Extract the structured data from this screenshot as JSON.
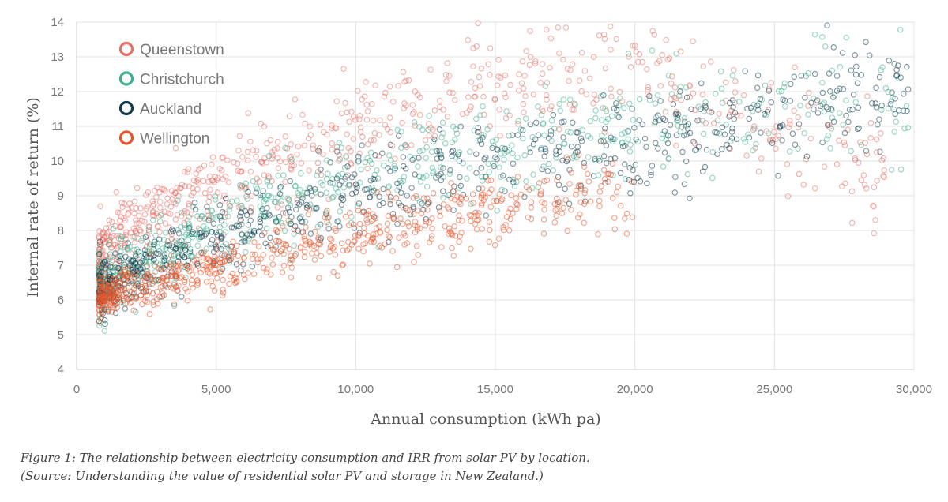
{
  "chart_data": {
    "type": "scatter",
    "xlabel": "Annual consumption (kWh pa)",
    "ylabel": "Internal rate of return (%)",
    "xlim": [
      0,
      30000
    ],
    "ylim": [
      4,
      14
    ],
    "x_ticks": [
      "0",
      "5,000",
      "10,000",
      "15,000",
      "20,000",
      "25,000",
      "30,000"
    ],
    "x_tick_values": [
      0,
      5000,
      10000,
      15000,
      20000,
      25000,
      30000
    ],
    "y_ticks": [
      "4",
      "5",
      "6",
      "7",
      "8",
      "9",
      "10",
      "11",
      "12",
      "13",
      "14"
    ],
    "y_tick_values": [
      4,
      5,
      6,
      7,
      8,
      9,
      10,
      11,
      12,
      13,
      14
    ],
    "grid": true,
    "legend_position": "top-left",
    "series": [
      {
        "name": "Queenstown",
        "color": "#e86f66",
        "trend": [
          [
            900,
            7.3
          ],
          [
            2000,
            8.1
          ],
          [
            5000,
            9.4
          ],
          [
            8000,
            10.3
          ],
          [
            10000,
            10.9
          ],
          [
            12000,
            11.5
          ],
          [
            15000,
            12.1
          ],
          [
            20000,
            12.7
          ],
          [
            25000,
            11.0
          ],
          [
            29000,
            10.0
          ]
        ],
        "spread_kwh": [
          800,
          29000
        ],
        "spread_irr": 0.55
      },
      {
        "name": "Christchurch",
        "color": "#3fae8e",
        "trend": [
          [
            900,
            6.4
          ],
          [
            2000,
            7.0
          ],
          [
            5000,
            8.2
          ],
          [
            8000,
            8.9
          ],
          [
            10000,
            9.4
          ],
          [
            12000,
            9.9
          ],
          [
            15000,
            10.2
          ],
          [
            20000,
            10.9
          ],
          [
            25000,
            11.6
          ],
          [
            29000,
            11.8
          ]
        ],
        "spread_kwh": [
          800,
          29800
        ],
        "spread_irr": 0.5
      },
      {
        "name": "Auckland",
        "color": "#123d4f",
        "trend": [
          [
            900,
            6.3
          ],
          [
            2000,
            6.8
          ],
          [
            5000,
            7.9
          ],
          [
            8000,
            8.7
          ],
          [
            10000,
            9.2
          ],
          [
            12000,
            9.5
          ],
          [
            15000,
            10.0
          ],
          [
            20000,
            10.5
          ],
          [
            25000,
            11.5
          ],
          [
            29000,
            12.1
          ]
        ],
        "spread_kwh": [
          800,
          29800
        ],
        "spread_irr": 0.45
      },
      {
        "name": "Wellington",
        "color": "#e8542a",
        "trend": [
          [
            900,
            6.05
          ],
          [
            2000,
            6.4
          ],
          [
            5000,
            6.9
          ],
          [
            8000,
            7.6
          ],
          [
            10000,
            7.9
          ],
          [
            12000,
            8.2
          ],
          [
            15000,
            8.6
          ],
          [
            18000,
            8.9
          ],
          [
            20000,
            9.1
          ]
        ],
        "spread_kwh": [
          800,
          20000
        ],
        "spread_irr": 0.3
      }
    ]
  },
  "caption": {
    "line1": "Figure 1: The relationship between electricity consumption and IRR from solar PV by location.",
    "line2": "(Source: Understanding the value of residential solar PV and storage in New Zealand.)"
  }
}
